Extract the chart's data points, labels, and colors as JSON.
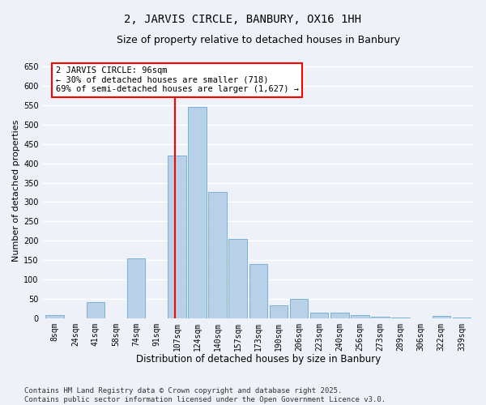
{
  "title": "2, JARVIS CIRCLE, BANBURY, OX16 1HH",
  "subtitle": "Size of property relative to detached houses in Banbury",
  "xlabel": "Distribution of detached houses by size in Banbury",
  "ylabel": "Number of detached properties",
  "categories": [
    "8sqm",
    "24sqm",
    "41sqm",
    "58sqm",
    "74sqm",
    "91sqm",
    "107sqm",
    "124sqm",
    "140sqm",
    "157sqm",
    "173sqm",
    "190sqm",
    "206sqm",
    "223sqm",
    "240sqm",
    "256sqm",
    "273sqm",
    "289sqm",
    "306sqm",
    "322sqm",
    "339sqm"
  ],
  "values": [
    8,
    0,
    42,
    0,
    155,
    0,
    420,
    545,
    325,
    205,
    140,
    32,
    50,
    14,
    14,
    8,
    4,
    2,
    0,
    5,
    2
  ],
  "bar_color": "#b8d0e8",
  "bar_edge_color": "#6aaad4",
  "vline_color": "red",
  "vline_x_index": 6,
  "annotation_text": "2 JARVIS CIRCLE: 96sqm\n← 30% of detached houses are smaller (718)\n69% of semi-detached houses are larger (1,627) →",
  "annotation_box_color": "white",
  "annotation_box_edge_color": "red",
  "ylim": [
    0,
    660
  ],
  "yticks": [
    0,
    50,
    100,
    150,
    200,
    250,
    300,
    350,
    400,
    450,
    500,
    550,
    600,
    650
  ],
  "background_color": "#eef2f8",
  "grid_color": "white",
  "footnote": "Contains HM Land Registry data © Crown copyright and database right 2025.\nContains public sector information licensed under the Open Government Licence v3.0.",
  "title_fontsize": 10,
  "subtitle_fontsize": 9,
  "xlabel_fontsize": 8.5,
  "ylabel_fontsize": 8,
  "tick_fontsize": 7,
  "annotation_fontsize": 7.5,
  "footnote_fontsize": 6.5
}
